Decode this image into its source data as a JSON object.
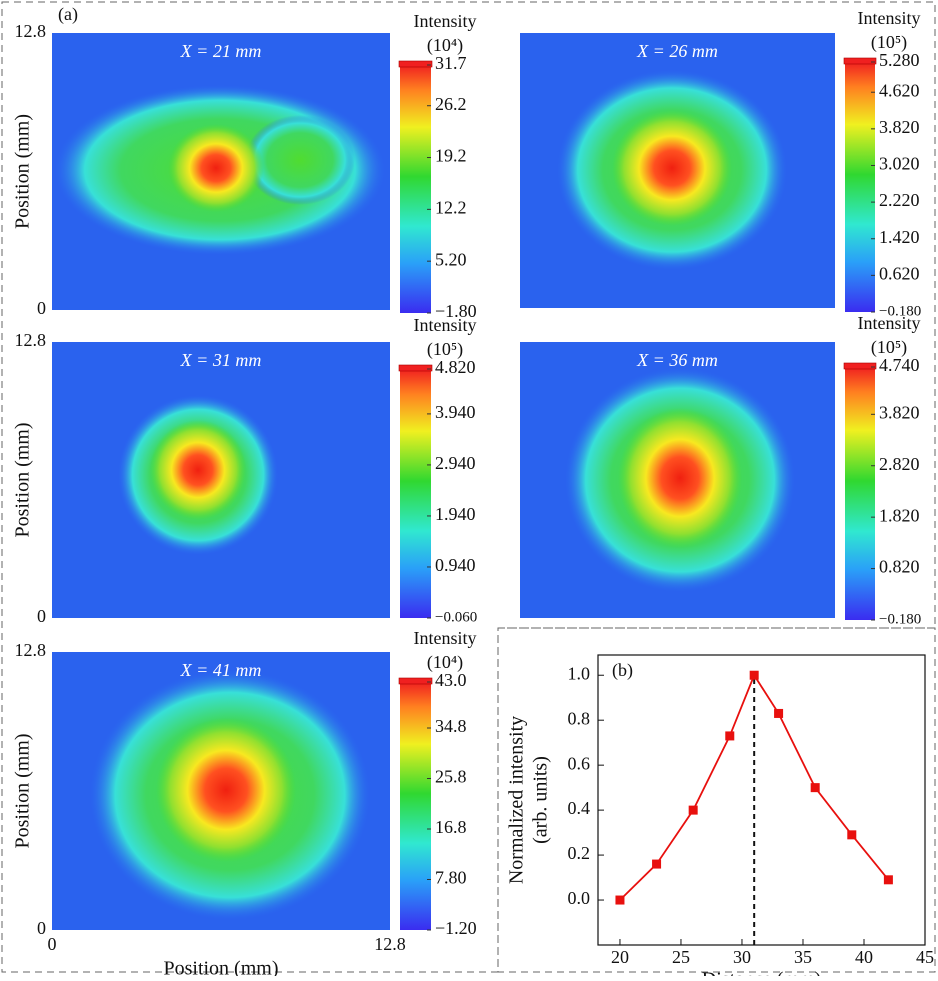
{
  "panel_labels": [
    "(a)",
    "(b)"
  ],
  "chart_data": [
    {
      "type": "heatmap",
      "title": "X = 21 mm",
      "ylabel": "Position (mm)",
      "ylim": [
        0,
        12.8
      ],
      "yticks": [
        0,
        12.8
      ],
      "colorbar_label": "Intensity",
      "colorbar_unit": "(10⁴)",
      "clim": [
        -1.8,
        31.7
      ],
      "cticks": [
        {
          "value": 31.7,
          "label": "31.7"
        },
        {
          "value": 26.2,
          "label": "26.2"
        },
        {
          "value": 19.2,
          "label": "19.2"
        },
        {
          "value": 12.2,
          "label": "12.2"
        },
        {
          "value": 5.2,
          "label": "5.20"
        },
        {
          "value": -1.8,
          "label": "−1.80"
        }
      ]
    },
    {
      "type": "heatmap",
      "title": "X = 26 mm",
      "ylim": [
        0,
        12.8
      ],
      "colorbar_label": "Intensity",
      "colorbar_unit": "(10⁵)",
      "clim": [
        -0.18,
        5.28
      ],
      "cticks": [
        {
          "value": 5.28,
          "label": "5.280"
        },
        {
          "value": 4.62,
          "label": "4.620"
        },
        {
          "value": 3.82,
          "label": "3.820"
        },
        {
          "value": 3.02,
          "label": "3.020"
        },
        {
          "value": 2.22,
          "label": "2.220"
        },
        {
          "value": 1.42,
          "label": "1.420"
        },
        {
          "value": 0.62,
          "label": "0.620"
        },
        {
          "value": -0.18,
          "label": "−0.180"
        }
      ]
    },
    {
      "type": "heatmap",
      "title": "X = 31 mm",
      "ylabel": "Position (mm)",
      "ylim": [
        0,
        12.8
      ],
      "yticks": [
        0,
        12.8
      ],
      "colorbar_label": "Intensity",
      "colorbar_unit": "(10⁵)",
      "clim": [
        -0.06,
        4.82
      ],
      "cticks": [
        {
          "value": 4.82,
          "label": "4.820"
        },
        {
          "value": 3.94,
          "label": "3.940"
        },
        {
          "value": 2.94,
          "label": "2.940"
        },
        {
          "value": 1.94,
          "label": "1.940"
        },
        {
          "value": 0.94,
          "label": "0.940"
        },
        {
          "value": -0.06,
          "label": "−0.060"
        }
      ]
    },
    {
      "type": "heatmap",
      "title": "X = 36 mm",
      "ylim": [
        0,
        12.8
      ],
      "colorbar_label": "Intensity",
      "colorbar_unit": "(10⁵)",
      "clim": [
        -0.18,
        4.74
      ],
      "cticks": [
        {
          "value": 4.74,
          "label": "4.740"
        },
        {
          "value": 3.82,
          "label": "3.820"
        },
        {
          "value": 2.82,
          "label": "2.820"
        },
        {
          "value": 1.82,
          "label": "1.820"
        },
        {
          "value": 0.82,
          "label": "0.820"
        },
        {
          "value": -0.18,
          "label": "−0.180"
        }
      ]
    },
    {
      "type": "heatmap",
      "title": "X = 41 mm",
      "ylabel": "Position (mm)",
      "xlabel": "Position (mm)",
      "xlim": [
        0,
        12.8
      ],
      "xticks": [
        0,
        12.8
      ],
      "ylim": [
        0,
        12.8
      ],
      "yticks": [
        0,
        12.8
      ],
      "colorbar_label": "Intensity",
      "colorbar_unit": "(10⁴)",
      "clim": [
        -1.2,
        43.0
      ],
      "cticks": [
        {
          "value": 43.0,
          "label": "43.0"
        },
        {
          "value": 34.8,
          "label": "34.8"
        },
        {
          "value": 25.8,
          "label": "25.8"
        },
        {
          "value": 16.8,
          "label": "16.8"
        },
        {
          "value": 7.8,
          "label": "7.80"
        },
        {
          "value": -1.2,
          "label": "−1.20"
        }
      ]
    },
    {
      "type": "line",
      "xlabel": "Distance (mm)",
      "ylabel": [
        "Normalized intensity",
        "(arb. units)"
      ],
      "x": [
        20,
        23,
        26,
        29,
        31,
        33,
        36,
        39,
        42
      ],
      "values": [
        0.0,
        0.16,
        0.4,
        0.73,
        1.0,
        0.83,
        0.5,
        0.29,
        0.09
      ],
      "color": "#e8100e",
      "vline": 31,
      "xlim": [
        18.2,
        45
      ],
      "xticks": [
        20,
        25,
        30,
        35,
        40,
        45
      ],
      "ylim": [
        -0.2,
        1.09
      ],
      "yticks": [
        {
          "value": 0,
          "label": "0.0"
        },
        {
          "value": 0.2,
          "label": "0.2"
        },
        {
          "value": 0.4,
          "label": "0.4"
        },
        {
          "value": 0.6,
          "label": "0.6"
        },
        {
          "value": 0.8,
          "label": "0.8"
        },
        {
          "value": 1.0,
          "label": "1.0"
        }
      ]
    }
  ]
}
